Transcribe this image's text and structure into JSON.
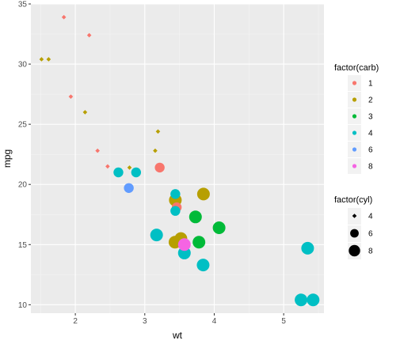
{
  "chart_data": {
    "type": "scatter",
    "xlabel": "wt",
    "ylabel": "mpg",
    "xlim": [
      1.36,
      5.58
    ],
    "ylim": [
      9.3,
      35
    ],
    "x_ticks": [
      2,
      3,
      4,
      5
    ],
    "y_ticks": [
      10,
      15,
      20,
      25,
      30,
      35
    ],
    "grid": true,
    "colors": {
      "panel_background": "#ebebeb",
      "grid_major": "#ffffff",
      "grid_minor": "#f4f4f4",
      "carb_1": "#f8766d",
      "carb_2": "#b79f00",
      "carb_3": "#00ba38",
      "carb_4": "#00bfc4",
      "carb_6": "#619cff",
      "carb_8": "#f564e3"
    },
    "legend_color": {
      "title": "factor(carb)",
      "placement": "right",
      "entries": [
        {
          "label": "1",
          "color": "#f8766d"
        },
        {
          "label": "2",
          "color": "#b79f00"
        },
        {
          "label": "3",
          "color": "#00ba38"
        },
        {
          "label": "4",
          "color": "#00bfc4"
        },
        {
          "label": "6",
          "color": "#619cff"
        },
        {
          "label": "8",
          "color": "#f564e3"
        }
      ]
    },
    "legend_size": {
      "title": "factor(cyl)",
      "placement": "right",
      "entries": [
        {
          "label": "4",
          "size_level": 1
        },
        {
          "label": "6",
          "size_level": 2
        },
        {
          "label": "8",
          "size_level": 3
        }
      ]
    },
    "points": [
      {
        "x": 2.62,
        "y": 21.0,
        "carb": "4",
        "cyl": "6"
      },
      {
        "x": 2.875,
        "y": 21.0,
        "carb": "4",
        "cyl": "6"
      },
      {
        "x": 2.32,
        "y": 22.8,
        "carb": "1",
        "cyl": "4"
      },
      {
        "x": 3.215,
        "y": 21.4,
        "carb": "1",
        "cyl": "6"
      },
      {
        "x": 3.44,
        "y": 18.7,
        "carb": "2",
        "cyl": "8"
      },
      {
        "x": 3.46,
        "y": 18.1,
        "carb": "1",
        "cyl": "6"
      },
      {
        "x": 3.57,
        "y": 14.3,
        "carb": "4",
        "cyl": "8"
      },
      {
        "x": 3.19,
        "y": 24.4,
        "carb": "2",
        "cyl": "4"
      },
      {
        "x": 3.15,
        "y": 22.8,
        "carb": "2",
        "cyl": "4"
      },
      {
        "x": 3.44,
        "y": 19.2,
        "carb": "4",
        "cyl": "6"
      },
      {
        "x": 3.44,
        "y": 17.8,
        "carb": "4",
        "cyl": "6"
      },
      {
        "x": 4.07,
        "y": 16.4,
        "carb": "3",
        "cyl": "8"
      },
      {
        "x": 3.73,
        "y": 17.3,
        "carb": "3",
        "cyl": "8"
      },
      {
        "x": 3.78,
        "y": 15.2,
        "carb": "3",
        "cyl": "8"
      },
      {
        "x": 5.25,
        "y": 10.4,
        "carb": "4",
        "cyl": "8"
      },
      {
        "x": 5.424,
        "y": 10.4,
        "carb": "4",
        "cyl": "8"
      },
      {
        "x": 5.345,
        "y": 14.7,
        "carb": "4",
        "cyl": "8"
      },
      {
        "x": 2.2,
        "y": 32.4,
        "carb": "1",
        "cyl": "4"
      },
      {
        "x": 1.615,
        "y": 30.4,
        "carb": "2",
        "cyl": "4"
      },
      {
        "x": 1.835,
        "y": 33.9,
        "carb": "1",
        "cyl": "4"
      },
      {
        "x": 2.465,
        "y": 21.5,
        "carb": "1",
        "cyl": "4"
      },
      {
        "x": 3.52,
        "y": 15.5,
        "carb": "2",
        "cyl": "8"
      },
      {
        "x": 3.435,
        "y": 15.2,
        "carb": "2",
        "cyl": "8"
      },
      {
        "x": 3.84,
        "y": 13.3,
        "carb": "4",
        "cyl": "8"
      },
      {
        "x": 3.845,
        "y": 19.2,
        "carb": "2",
        "cyl": "8"
      },
      {
        "x": 1.935,
        "y": 27.3,
        "carb": "1",
        "cyl": "4"
      },
      {
        "x": 2.14,
        "y": 26.0,
        "carb": "2",
        "cyl": "4"
      },
      {
        "x": 1.513,
        "y": 30.4,
        "carb": "2",
        "cyl": "4"
      },
      {
        "x": 3.17,
        "y": 15.8,
        "carb": "4",
        "cyl": "8"
      },
      {
        "x": 2.77,
        "y": 19.7,
        "carb": "6",
        "cyl": "6"
      },
      {
        "x": 3.57,
        "y": 15.0,
        "carb": "8",
        "cyl": "8"
      },
      {
        "x": 2.78,
        "y": 21.4,
        "carb": "2",
        "cyl": "4"
      }
    ]
  }
}
